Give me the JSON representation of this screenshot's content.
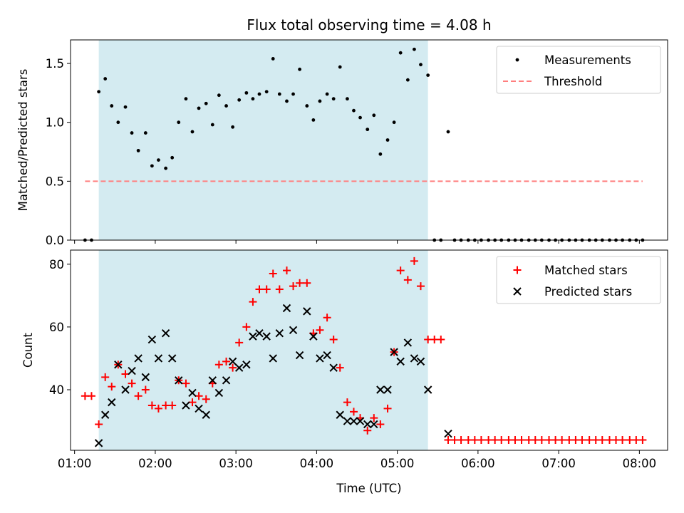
{
  "chart_data": [
    {
      "type": "scatter",
      "title": "Flux total observing time = 4.08 h",
      "xlabel": "",
      "ylabel": "Matched/Predicted stars",
      "xlim": [
        0.95,
        8.35
      ],
      "ylim": [
        0,
        1.7
      ],
      "yticks": [
        0.0,
        0.5,
        1.0,
        1.5
      ],
      "yticklabels": [
        "0.0",
        "0.5",
        "1.0",
        "1.5"
      ],
      "shaded_region": {
        "x_start": 1.3,
        "x_end": 5.38,
        "color": "#d4ebf1"
      },
      "legend": {
        "position": "top-right"
      },
      "series": [
        {
          "name": "Measurements",
          "marker": "dot",
          "color": "#000000",
          "x": [
            1.13,
            1.21,
            1.3,
            1.38,
            1.46,
            1.54,
            1.63,
            1.71,
            1.79,
            1.88,
            1.96,
            2.04,
            2.13,
            2.21,
            2.29,
            2.38,
            2.46,
            2.54,
            2.63,
            2.71,
            2.79,
            2.88,
            2.96,
            3.04,
            3.13,
            3.21,
            3.29,
            3.38,
            3.46,
            3.54,
            3.63,
            3.71,
            3.79,
            3.88,
            3.96,
            4.04,
            4.13,
            4.21,
            4.29,
            4.38,
            4.46,
            4.54,
            4.63,
            4.71,
            4.79,
            4.88,
            4.96,
            5.04,
            5.13,
            5.21,
            5.29,
            5.38,
            5.46,
            5.54,
            5.63,
            5.71,
            5.79,
            5.88,
            5.96,
            6.04,
            6.13,
            6.21,
            6.29,
            6.38,
            6.46,
            6.54,
            6.63,
            6.71,
            6.79,
            6.88,
            6.96,
            7.04,
            7.13,
            7.21,
            7.29,
            7.38,
            7.46,
            7.54,
            7.63,
            7.71,
            7.79,
            7.88,
            7.96,
            8.04
          ],
          "y": [
            0,
            0,
            1.26,
            1.37,
            1.14,
            1.0,
            1.13,
            0.91,
            0.76,
            0.91,
            0.63,
            0.68,
            0.61,
            0.7,
            1.0,
            1.2,
            0.92,
            1.12,
            1.16,
            0.98,
            1.23,
            1.14,
            0.96,
            1.19,
            1.25,
            1.2,
            1.24,
            1.26,
            1.54,
            1.24,
            1.18,
            1.24,
            1.45,
            1.14,
            1.02,
            1.18,
            1.24,
            1.2,
            1.47,
            1.2,
            1.1,
            1.04,
            0.94,
            1.06,
            0.73,
            0.85,
            1.0,
            1.59,
            1.36,
            1.62,
            1.49,
            1.4,
            0,
            0,
            0.92,
            0,
            0,
            0,
            0,
            0,
            0,
            0,
            0,
            0,
            0,
            0,
            0,
            0,
            0,
            0,
            0,
            0,
            0,
            0,
            0,
            0,
            0,
            0,
            0,
            0,
            0,
            0,
            0,
            0
          ]
        },
        {
          "name": "Threshold",
          "marker": "dashed-line",
          "color": "#ff7f7f",
          "x": [
            1.13,
            8.04
          ],
          "y": [
            0.5,
            0.5
          ]
        }
      ]
    },
    {
      "type": "scatter",
      "title": "",
      "xlabel": "Time (UTC)",
      "ylabel": "Count",
      "xlim": [
        0.95,
        8.35
      ],
      "ylim": [
        20.7,
        84.5
      ],
      "xticks": [
        1,
        2,
        3,
        4,
        5,
        6,
        7,
        8
      ],
      "xticklabels": [
        "01:00",
        "02:00",
        "03:00",
        "04:00",
        "05:00",
        "06:00",
        "07:00",
        "08:00"
      ],
      "yticks": [
        40,
        60,
        80
      ],
      "yticklabels": [
        "40",
        "60",
        "80"
      ],
      "shaded_region": {
        "x_start": 1.3,
        "x_end": 5.38,
        "color": "#d4ebf1"
      },
      "legend": {
        "position": "top-right"
      },
      "series": [
        {
          "name": "Matched stars",
          "marker": "plus",
          "color": "#ff0000",
          "x": [
            1.13,
            1.21,
            1.3,
            1.38,
            1.46,
            1.54,
            1.63,
            1.71,
            1.79,
            1.88,
            1.96,
            2.04,
            2.13,
            2.21,
            2.29,
            2.38,
            2.46,
            2.54,
            2.63,
            2.71,
            2.79,
            2.88,
            2.96,
            3.04,
            3.13,
            3.21,
            3.29,
            3.38,
            3.46,
            3.54,
            3.63,
            3.71,
            3.79,
            3.88,
            3.96,
            4.04,
            4.13,
            4.21,
            4.29,
            4.38,
            4.46,
            4.54,
            4.63,
            4.71,
            4.79,
            4.88,
            4.96,
            5.04,
            5.13,
            5.21,
            5.29,
            5.38,
            5.46,
            5.54,
            5.63,
            5.71,
            5.79,
            5.88,
            5.96,
            6.04,
            6.13,
            6.21,
            6.29,
            6.38,
            6.46,
            6.54,
            6.63,
            6.71,
            6.79,
            6.88,
            6.96,
            7.04,
            7.13,
            7.21,
            7.29,
            7.38,
            7.46,
            7.54,
            7.63,
            7.71,
            7.79,
            7.88,
            7.96,
            8.04
          ],
          "y": [
            38,
            38,
            29,
            44,
            41,
            48,
            45,
            42,
            38,
            40,
            35,
            34,
            35,
            35,
            43,
            42,
            36,
            38,
            37,
            42,
            48,
            49,
            47,
            55,
            60,
            68,
            72,
            72,
            77,
            72,
            78,
            73,
            74,
            74,
            58,
            59,
            63,
            56,
            47,
            36,
            33,
            31,
            27,
            31,
            29,
            34,
            52,
            78,
            75,
            81,
            73,
            56,
            56,
            56,
            24,
            24,
            24,
            24,
            24,
            24,
            24,
            24,
            24,
            24,
            24,
            24,
            24,
            24,
            24,
            24,
            24,
            24,
            24,
            24,
            24,
            24,
            24,
            24,
            24,
            24,
            24,
            24,
            24,
            24
          ]
        },
        {
          "name": "Predicted stars",
          "marker": "x",
          "color": "#000000",
          "x": [
            1.3,
            1.38,
            1.46,
            1.54,
            1.63,
            1.71,
            1.79,
            1.88,
            1.96,
            2.04,
            2.13,
            2.21,
            2.29,
            2.38,
            2.46,
            2.54,
            2.63,
            2.71,
            2.79,
            2.88,
            2.96,
            3.04,
            3.13,
            3.21,
            3.29,
            3.38,
            3.46,
            3.54,
            3.63,
            3.71,
            3.79,
            3.88,
            3.96,
            4.04,
            4.13,
            4.21,
            4.29,
            4.38,
            4.46,
            4.54,
            4.63,
            4.71,
            4.79,
            4.88,
            4.96,
            5.04,
            5.13,
            5.21,
            5.29,
            5.38,
            5.63
          ],
          "y": [
            23,
            32,
            36,
            48,
            40,
            46,
            50,
            44,
            56,
            50,
            58,
            50,
            43,
            35,
            39,
            34,
            32,
            43,
            39,
            43,
            49,
            47,
            48,
            57,
            58,
            57,
            50,
            58,
            66,
            59,
            51,
            65,
            57,
            50,
            51,
            47,
            32,
            30,
            30,
            30,
            29,
            29,
            40,
            40,
            52,
            49,
            55,
            50,
            49,
            40,
            26
          ]
        }
      ]
    }
  ]
}
